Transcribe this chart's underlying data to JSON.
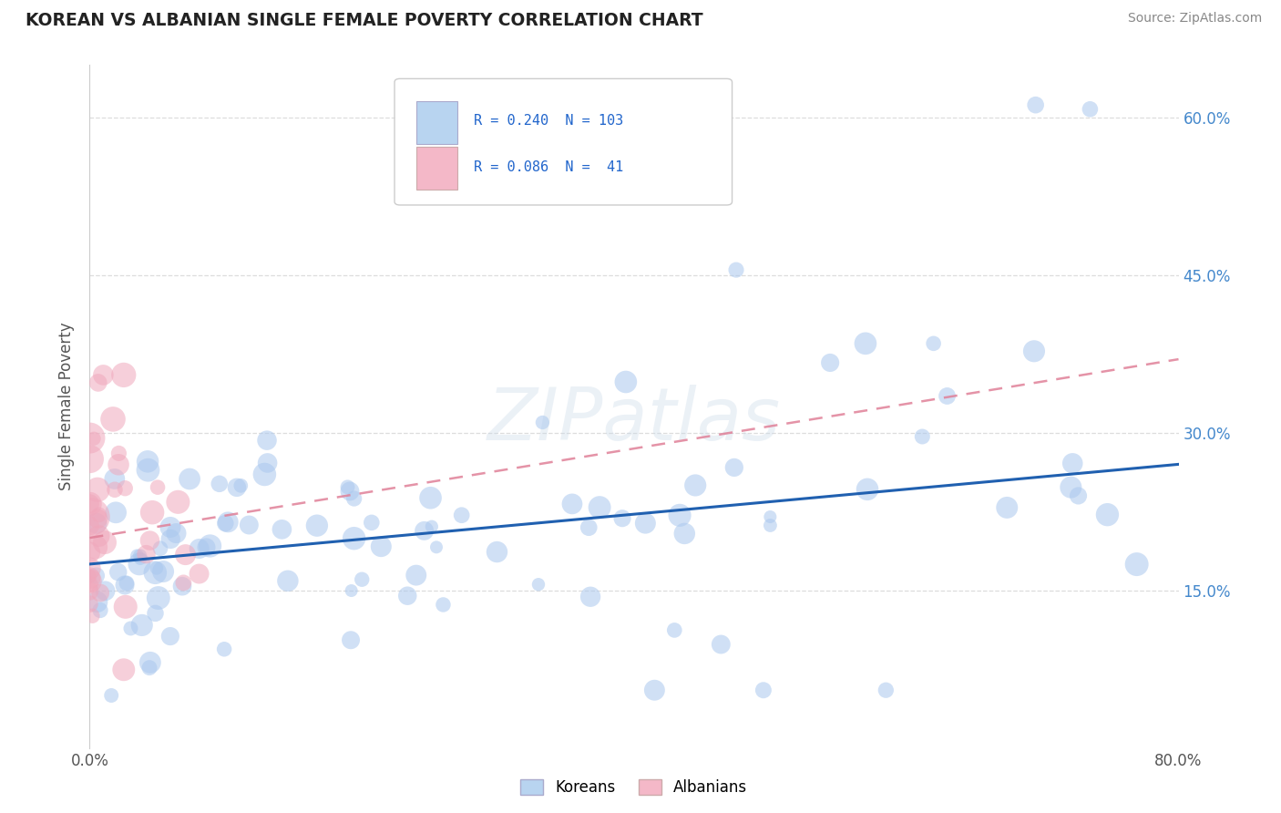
{
  "title": "KOREAN VS ALBANIAN SINGLE FEMALE POVERTY CORRELATION CHART",
  "source": "Source: ZipAtlas.com",
  "ylabel": "Single Female Poverty",
  "watermark": "ZIPatlas",
  "xlim": [
    0.0,
    0.8
  ],
  "ylim": [
    0.0,
    0.65
  ],
  "xtick_positions": [
    0.0,
    0.1,
    0.2,
    0.3,
    0.4,
    0.5,
    0.6,
    0.7,
    0.8
  ],
  "xticklabels": [
    "0.0%",
    "",
    "",
    "",
    "",
    "",
    "",
    "",
    "80.0%"
  ],
  "ytick_positions": [
    0.15,
    0.3,
    0.45,
    0.6
  ],
  "ytick_labels": [
    "15.0%",
    "30.0%",
    "45.0%",
    "60.0%"
  ],
  "korean_R": 0.24,
  "korean_N": 103,
  "albanian_R": 0.086,
  "albanian_N": 41,
  "korean_color": "#aac8ee",
  "albanian_color": "#f0a8bc",
  "korean_line_color": "#2060b0",
  "albanian_line_color": "#e08098",
  "legend_korean_face": "#b8d4f0",
  "legend_albanian_face": "#f4b8c8",
  "right_tick_color": "#4488cc",
  "title_color": "#222222",
  "source_color": "#888888",
  "grid_color": "#dddddd",
  "watermark_color": "#c8d8e8"
}
